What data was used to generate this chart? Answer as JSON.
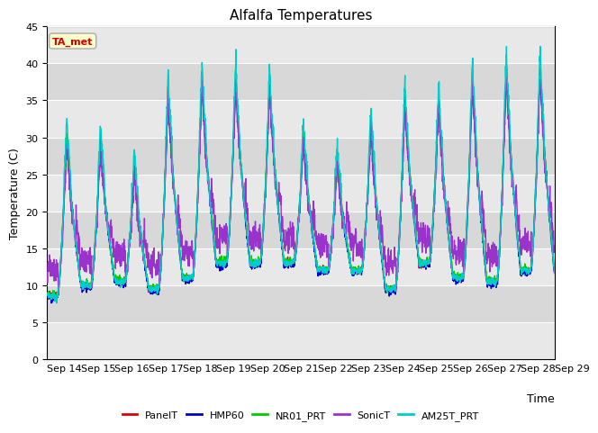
{
  "title": "Alfalfa Temperatures",
  "xlabel": "Time",
  "ylabel": "Temperature (C)",
  "ylim": [
    0,
    45
  ],
  "yticks": [
    0,
    5,
    10,
    15,
    20,
    25,
    30,
    35,
    40,
    45
  ],
  "x_tick_labels": [
    "Sep 14",
    "Sep 15",
    "Sep 16",
    "Sep 17",
    "Sep 18",
    "Sep 19",
    "Sep 20",
    "Sep 21",
    "Sep 22",
    "Sep 23",
    "Sep 24",
    "Sep 25",
    "Sep 26",
    "Sep 27",
    "Sep 28",
    "Sep 29"
  ],
  "annotation_text": "TA_met",
  "annotation_color": "#cc0000",
  "annotation_bg": "#ffffcc",
  "annotation_border": "#aaaaaa",
  "series_colors": {
    "PanelT": "#dd0000",
    "HMP60": "#0000cc",
    "NR01_PRT": "#00cc00",
    "SonicT": "#9933cc",
    "AM25T_PRT": "#00cccc"
  },
  "series_linewidth": 1.0,
  "band_colors": [
    "#e8e8e8",
    "#d8d8d8"
  ],
  "fig_bg": "#ffffff",
  "title_fontsize": 11,
  "axis_label_fontsize": 9,
  "tick_fontsize": 8,
  "day_peaks": [
    31.0,
    30.5,
    27.0,
    37.5,
    39.0,
    39.0,
    38.0,
    31.0,
    27.5,
    33.0,
    36.0,
    36.0,
    39.5,
    40.5,
    40.5
  ],
  "night_mins": [
    8.5,
    10.0,
    10.5,
    9.5,
    11.0,
    13.0,
    13.0,
    13.0,
    12.0,
    12.0,
    9.5,
    13.0,
    11.0,
    10.5,
    12.0
  ]
}
